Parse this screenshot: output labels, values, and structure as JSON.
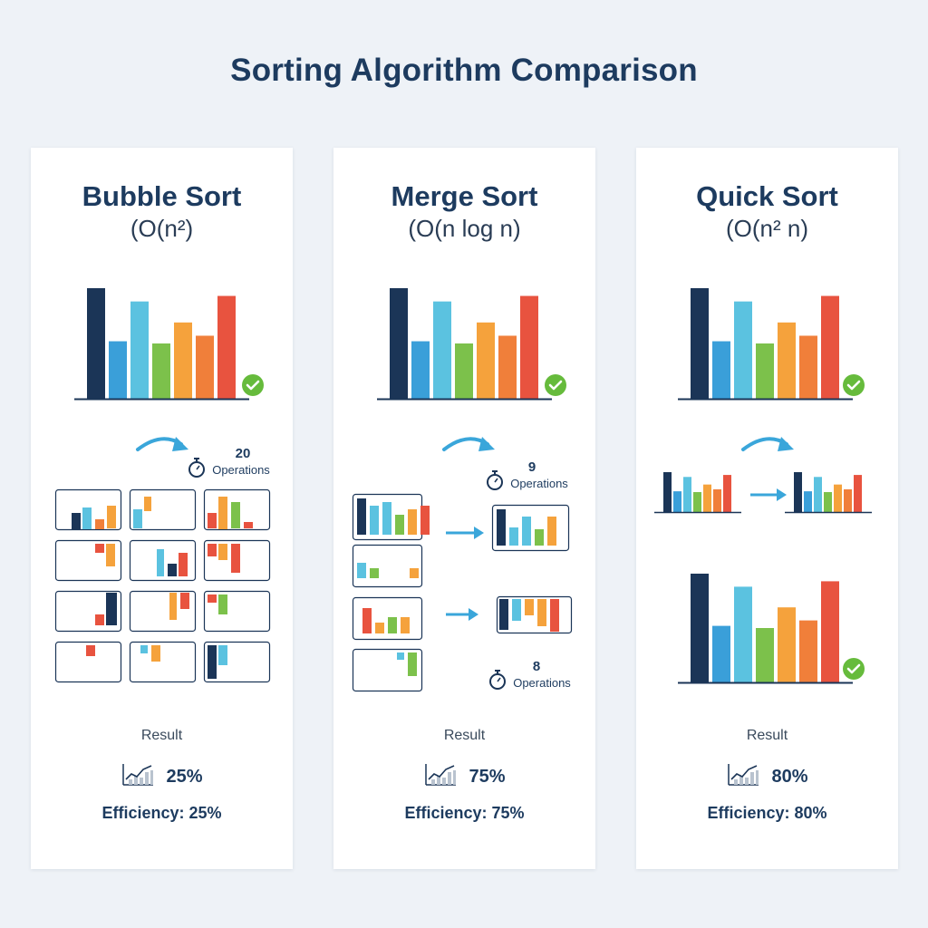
{
  "title": "Sorting Algorithm Comparison",
  "colors": {
    "navy": "#1b3557",
    "blue": "#3a9fd9",
    "lightblue": "#5bc2e0",
    "green": "#7cc14b",
    "orange": "#f5a23c",
    "deeporange": "#f07f3a",
    "red": "#e8533f",
    "check": "#66bb3c",
    "arrow": "#3aa6da"
  },
  "bar_levels": [
    1.0,
    0.52,
    0.88,
    0.5,
    0.69,
    0.57,
    0.93
  ],
  "cards": [
    {
      "name": "Bubble Sort",
      "complexity": "(O(n²)",
      "operations": [
        {
          "count": "20",
          "label": "Operations"
        }
      ],
      "result_label": "Result",
      "result_value": "25%",
      "efficiency": "Efficiency: 25%"
    },
    {
      "name": "Merge Sort",
      "complexity": "(O(n log n)",
      "operations": [
        {
          "count": "9",
          "label": "Operations"
        },
        {
          "count": "8",
          "label": "Operations"
        }
      ],
      "result_label": "Result",
      "result_value": "75%",
      "efficiency": "Efficiency: 75%"
    },
    {
      "name": "Quick Sort",
      "complexity": "(O(n² n)",
      "operations": [],
      "result_label": "Result",
      "result_value": "80%",
      "efficiency": "Efficiency: 80%"
    }
  ],
  "icons": [
    "check-icon",
    "curved-arrow-icon",
    "stopwatch-icon",
    "arrow-right-icon",
    "chart-icon"
  ]
}
